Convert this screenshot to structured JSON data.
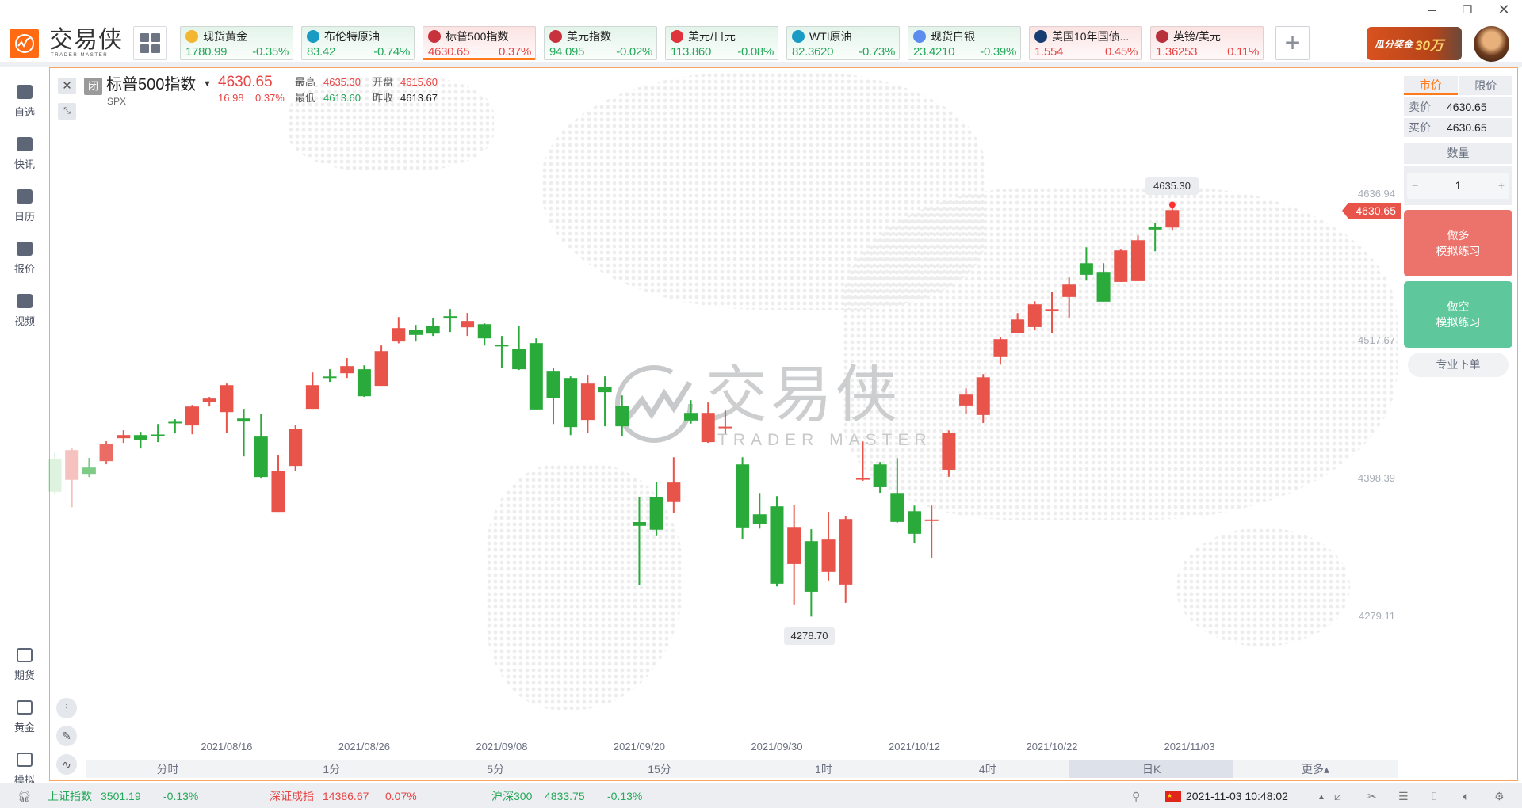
{
  "app": {
    "logo_text": "交易侠",
    "logo_sub": "TRADER MASTER",
    "window": {
      "minimize": "–",
      "restore": "❐",
      "close": "✕"
    },
    "banner_text": "瓜分奖金",
    "banner_amount": "30万"
  },
  "tickers": [
    {
      "name": "现货黄金",
      "price": "1780.99",
      "change": "-0.35%",
      "dir": "down",
      "icon": "gold-coin-icon",
      "icon_color": "#f2b631"
    },
    {
      "name": "布伦特原油",
      "price": "83.42",
      "change": "-0.74%",
      "dir": "down",
      "icon": "oil-barrel-icon",
      "icon_color": "#1a9bc4"
    },
    {
      "name": "标普500指数",
      "price": "4630.65",
      "change": "0.37%",
      "dir": "up",
      "icon": "us-flag-icon",
      "icon_color": "#c8323c",
      "active": true
    },
    {
      "name": "美元指数",
      "price": "94.095",
      "change": "-0.02%",
      "dir": "down",
      "icon": "us-flag-icon",
      "icon_color": "#c8323c"
    },
    {
      "name": "美元/日元",
      "price": "113.860",
      "change": "-0.08%",
      "dir": "down",
      "icon": "us-jp-flag-icon",
      "icon_color": "#e0343c"
    },
    {
      "name": "WTI原油",
      "price": "82.3620",
      "change": "-0.73%",
      "dir": "down",
      "icon": "oil-barrel-icon",
      "icon_color": "#1a9bc4"
    },
    {
      "name": "现货白银",
      "price": "23.4210",
      "change": "-0.39%",
      "dir": "down",
      "icon": "silver-bars-icon",
      "icon_color": "#5b8def"
    },
    {
      "name": "美国10年国债...",
      "price": "1.554",
      "change": "0.45%",
      "dir": "up",
      "icon": "bond-chart-icon",
      "icon_color": "#173e72"
    },
    {
      "name": "英镑/美元",
      "price": "1.36253",
      "change": "0.11%",
      "dir": "up",
      "icon": "uk-us-flag-icon",
      "icon_color": "#b8323c"
    }
  ],
  "sidebar": {
    "top": [
      {
        "label": "自选",
        "icon": "bookmark-icon"
      },
      {
        "label": "快讯",
        "icon": "news-icon"
      },
      {
        "label": "日历",
        "icon": "calendar-icon"
      },
      {
        "label": "报价",
        "icon": "quote-chart-icon"
      },
      {
        "label": "视频",
        "icon": "video-icon"
      }
    ],
    "bottom": [
      {
        "label": "期货",
        "icon": "futures-icon"
      },
      {
        "label": "黄金",
        "icon": "gold-icon"
      },
      {
        "label": "模拟",
        "icon": "wallet-icon"
      }
    ]
  },
  "instrument": {
    "status_badge": "闭",
    "name": "标普500指数",
    "code": "SPX",
    "price": "4630.65",
    "change": "16.98",
    "change_pct": "0.37%",
    "high_label": "最高",
    "high": "4635.30",
    "open_label": "开盘",
    "open": "4615.60",
    "low_label": "最低",
    "low": "4613.60",
    "prev_label": "昨收",
    "prev_close": "4613.67"
  },
  "chart_data": {
    "type": "candlestick",
    "ylim": [
      4265,
      4650
    ],
    "y_ticks": [
      "4636.94",
      "4517.67",
      "4398.39",
      "4279.11"
    ],
    "x_ticks": [
      "2021/08/16",
      "2021/08/26",
      "2021/09/08",
      "2021/09/20",
      "2021/09/30",
      "2021/10/12",
      "2021/10/22",
      "2021/11/03"
    ],
    "current_price": "4630.65",
    "annotations": {
      "max": "4635.30",
      "min": "4278.70"
    },
    "up_color": "#e8534a",
    "down_color": "#2aaa3a",
    "ohlc": [
      [
        "2021-08-02",
        4415.4,
        4420.4,
        4385.0,
        4386.8
      ],
      [
        "2021-08-03",
        4397.1,
        4425.0,
        4373.5,
        4422.9
      ],
      [
        "2021-08-04",
        4407.8,
        4416.1,
        4399.6,
        4402.3
      ],
      [
        "2021-08-05",
        4413.3,
        4430.5,
        4410.6,
        4428.4
      ],
      [
        "2021-08-06",
        4433.2,
        4440.1,
        4429.1,
        4435.9
      ],
      [
        "2021-08-09",
        4435.9,
        4438.7,
        4424.3,
        4431.8
      ],
      [
        "2021-08-10",
        4436.4,
        4445.5,
        4429.8,
        4436.0
      ],
      [
        "2021-08-11",
        4447.4,
        4449.7,
        4437.3,
        4447.0
      ],
      [
        "2021-08-12",
        4444.2,
        4462.0,
        4436.6,
        4460.6
      ],
      [
        "2021-08-13",
        4464.7,
        4468.9,
        4460.6,
        4467.5
      ],
      [
        "2021-08-16",
        4455.8,
        4480.5,
        4438.0,
        4479.1
      ],
      [
        "2021-08-17",
        4450.3,
        4458.6,
        4417.4,
        4447.6
      ],
      [
        "2021-08-18",
        4434.6,
        4454.5,
        4398.2,
        4399.6
      ],
      [
        "2021-08-19",
        4369.4,
        4418.8,
        4369.4,
        4405.1
      ],
      [
        "2021-08-20",
        4409.2,
        4444.9,
        4405.1,
        4441.4
      ],
      [
        "2021-08-23",
        4458.6,
        4490.1,
        4458.6,
        4479.1
      ],
      [
        "2021-08-24",
        4486.6,
        4492.9,
        4481.9,
        4486.4
      ],
      [
        "2021-08-25",
        4489.4,
        4502.5,
        4485.3,
        4495.6
      ],
      [
        "2021-08-26",
        4492.9,
        4496.3,
        4468.9,
        4469.5
      ],
      [
        "2021-08-27",
        4478.5,
        4513.4,
        4478.5,
        4508.6
      ],
      [
        "2021-08-30",
        4516.9,
        4538.1,
        4515.3,
        4528.5
      ],
      [
        "2021-08-31",
        4527.2,
        4531.3,
        4516.9,
        4522.6
      ],
      [
        "2021-09-01",
        4530.6,
        4537.4,
        4521.7,
        4523.7
      ],
      [
        "2021-09-02",
        4538.8,
        4545.0,
        4525.1,
        4536.8
      ],
      [
        "2021-09-03",
        4529.2,
        4541.6,
        4521.7,
        4534.7
      ],
      [
        "2021-09-07",
        4531.9,
        4532.6,
        4513.4,
        4519.6
      ],
      [
        "2021-09-08",
        4514.0,
        4521.7,
        4494.2,
        4513.9
      ],
      [
        "2021-09-09",
        4510.7,
        4530.6,
        4492.2,
        4492.9
      ],
      [
        "2021-09-10",
        4515.5,
        4519.6,
        4458.1,
        4458.1
      ],
      [
        "2021-09-13",
        4491.5,
        4494.2,
        4445.5,
        4468.2
      ],
      [
        "2021-09-14",
        4485.3,
        4486.7,
        4435.9,
        4442.8
      ],
      [
        "2021-09-15",
        4449.0,
        4487.4,
        4438.0,
        4480.5
      ],
      [
        "2021-09-16",
        4477.8,
        4486.7,
        4443.5,
        4473.0
      ],
      [
        "2021-09-17",
        4461.3,
        4470.2,
        4434.6,
        4443.5
      ],
      [
        "2021-09-20",
        4360.6,
        4382.5,
        4305.9,
        4357.3
      ],
      [
        "2021-09-21",
        4382.5,
        4395.5,
        4348.4,
        4353.9
      ],
      [
        "2021-09-22",
        4377.9,
        4416.7,
        4368.3,
        4394.8
      ],
      [
        "2021-09-23",
        4455.1,
        4466.1,
        4445.8,
        4448.5
      ],
      [
        "2021-09-24",
        4429.8,
        4464.1,
        4429.1,
        4455.1
      ],
      [
        "2021-09-27",
        4443.0,
        4457.2,
        4437.1,
        4443.2
      ],
      [
        "2021-09-28",
        4410.5,
        4416.7,
        4346.0,
        4355.9
      ],
      [
        "2021-09-29",
        4367.3,
        4385.8,
        4354.9,
        4359.1
      ],
      [
        "2021-09-30",
        4374.2,
        4383.1,
        4304.9,
        4307.2
      ],
      [
        "2021-10-01",
        4324.3,
        4375.5,
        4288.7,
        4356.3
      ],
      [
        "2021-10-04",
        4344.0,
        4354.3,
        4278.7,
        4300.3
      ],
      [
        "2021-10-05",
        4317.5,
        4369.4,
        4309.9,
        4345.4
      ],
      [
        "2021-10-06",
        4306.5,
        4365.9,
        4290.7,
        4363.2
      ],
      [
        "2021-10-07",
        4398.4,
        4430.4,
        4396.3,
        4398.6
      ],
      [
        "2021-10-08",
        4410.5,
        4412.6,
        4386.0,
        4390.8
      ],
      [
        "2021-10-11",
        4385.8,
        4416.0,
        4360.0,
        4360.7
      ],
      [
        "2021-10-12",
        4370.0,
        4374.8,
        4342.2,
        4350.4
      ],
      [
        "2021-10-13",
        4362.6,
        4374.8,
        4329.8,
        4362.8
      ],
      [
        "2021-10-14",
        4405.9,
        4440.0,
        4399.8,
        4437.9
      ],
      [
        "2021-10-15",
        4461.5,
        4476.3,
        4454.6,
        4470.9
      ],
      [
        "2021-10-18",
        4453.3,
        4488.7,
        4446.4,
        4485.9
      ],
      [
        "2021-10-19",
        4503.4,
        4520.9,
        4496.9,
        4518.9
      ],
      [
        "2021-10-20",
        4523.9,
        4541.5,
        4523.9,
        4536.0
      ],
      [
        "2021-10-21",
        4529.4,
        4551.8,
        4526.7,
        4549.1
      ],
      [
        "2021-10-22",
        4544.7,
        4560.0,
        4524.4,
        4544.9
      ],
      [
        "2021-10-25",
        4555.5,
        4572.4,
        4537.4,
        4566.2
      ],
      [
        "2021-10-26",
        4584.7,
        4598.4,
        4569.6,
        4574.7
      ],
      [
        "2021-10-27",
        4577.2,
        4584.7,
        4551.4,
        4551.4
      ],
      [
        "2021-10-28",
        4568.5,
        4597.1,
        4568.5,
        4595.7
      ],
      [
        "2021-10-29",
        4569.2,
        4608.7,
        4569.2,
        4604.6
      ],
      [
        "2021-11-01",
        4616.0,
        4619.7,
        4595.0,
        4613.8
      ],
      [
        "2021-11-02",
        4615.6,
        4635.3,
        4613.6,
        4630.65
      ]
    ]
  },
  "watermark": {
    "text": "交易侠",
    "sub": "TRADER MASTER"
  },
  "timeframes": [
    {
      "label": "分时"
    },
    {
      "label": "1分"
    },
    {
      "label": "5分"
    },
    {
      "label": "15分"
    },
    {
      "label": "1时"
    },
    {
      "label": "4时"
    },
    {
      "label": "日K",
      "selected": true
    },
    {
      "label": "更多▴"
    }
  ],
  "order_panel": {
    "tab_market": "市价",
    "tab_limit": "限价",
    "sell_label": "卖价",
    "sell_price": "4630.65",
    "buy_label": "买价",
    "buy_price": "4630.65",
    "qty_label": "数量",
    "qty": "1",
    "minus": "−",
    "plus": "+",
    "long_title": "做多",
    "long_sub": "模拟练习",
    "short_title": "做空",
    "short_sub": "模拟练习",
    "pro_order": "专业下单"
  },
  "statusbar": {
    "indices": [
      {
        "name": "上证指数",
        "value": "3501.19",
        "change": "-0.13%",
        "dir": "down"
      },
      {
        "name": "深证成指",
        "value": "14386.67",
        "change": "0.07%",
        "dir": "up"
      },
      {
        "name": "沪深300",
        "value": "4833.75",
        "change": "-0.13%",
        "dir": "down"
      }
    ],
    "datetime": "2021-11-03 10:48:02"
  }
}
